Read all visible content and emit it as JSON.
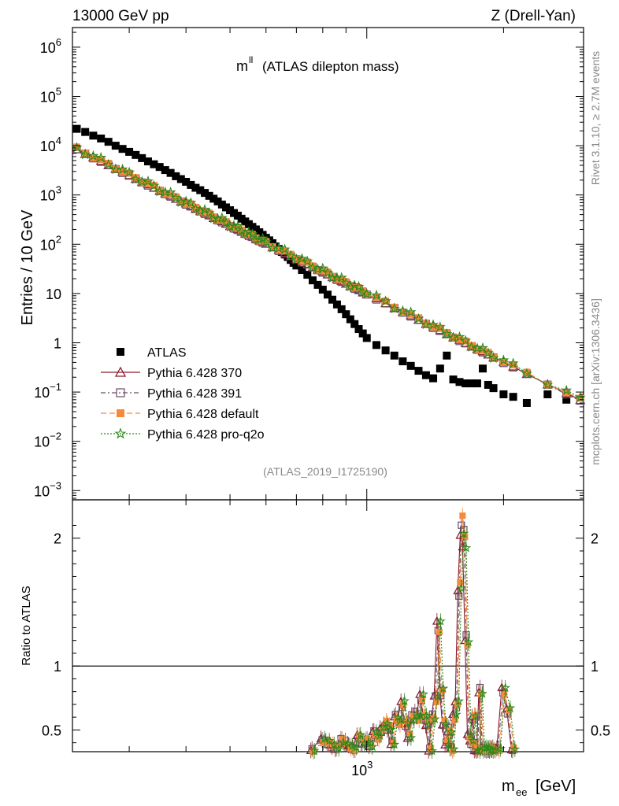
{
  "header": {
    "left": "13000 GeV pp",
    "right": "Z (Drell-Yan)",
    "plot_title_main": "m",
    "plot_title_sup": "ll",
    "plot_title_rest": "(ATLAS dilepton mass)",
    "analysis_id": "(ATLAS_2019_I1725190)"
  },
  "side_labels": {
    "rivet": "Rivet 3.1.10, ≥ 2.7M events",
    "mcplots": "mcplots.cern.ch [arXiv:1306.3436]"
  },
  "axes": {
    "ylabel_main": "Entries / 10 GeV",
    "ylabel_ratio": "Ratio to ATLAS",
    "xlabel_main": "m",
    "xlabel_sub": "ee",
    "xlabel_unit": "[GeV]"
  },
  "legend": [
    {
      "name": "ATLAS",
      "color": "#000000",
      "marker": "square-filled"
    },
    {
      "name": "Pythia 6.428 370",
      "color": "#8b1a2b",
      "marker": "triangle-open"
    },
    {
      "name": "Pythia 6.428 391",
      "color": "#6b4c68",
      "marker": "square-open"
    },
    {
      "name": "Pythia 6.428 default",
      "color": "#f58a3a",
      "marker": "square-filled"
    },
    {
      "name": "Pythia 6.428 pro-q2o",
      "color": "#2a8a1a",
      "marker": "star-open"
    }
  ],
  "chart_data": {
    "type": "scatter",
    "x_scale": "log",
    "y_scale": "log",
    "xlim": [
      225,
      3000
    ],
    "ylim": [
      0.00065,
      2500000
    ],
    "ratio_ylim": [
      0.33,
      2.3
    ],
    "yticks_main": [
      {
        "v": 0.001,
        "m": "10",
        "e": "−3"
      },
      {
        "v": 0.01,
        "m": "10",
        "e": "−2"
      },
      {
        "v": 0.1,
        "m": "10",
        "e": "−1"
      },
      {
        "v": 1,
        "m": "1",
        "e": ""
      },
      {
        "v": 10,
        "m": "10",
        "e": ""
      },
      {
        "v": 100,
        "m": "10",
        "e": "2"
      },
      {
        "v": 1000,
        "m": "10",
        "e": "3"
      },
      {
        "v": 10000,
        "m": "10",
        "e": "4"
      },
      {
        "v": 100000,
        "m": "10",
        "e": "5"
      },
      {
        "v": 1000000,
        "m": "10",
        "e": "6"
      }
    ],
    "xticks_main": [
      {
        "v": 1000,
        "m": "10",
        "e": "3"
      }
    ],
    "yticks_ratio": [
      {
        "v": 0.5,
        "label": "0.5"
      },
      {
        "v": 1,
        "label": "1"
      },
      {
        "v": 2,
        "label": "2"
      }
    ],
    "data_atlas": {
      "x": [
        230,
        240,
        250,
        260,
        270,
        280,
        290,
        300,
        310,
        320,
        330,
        340,
        350,
        360,
        370,
        380,
        390,
        400,
        410,
        420,
        430,
        440,
        450,
        460,
        470,
        480,
        490,
        500,
        510,
        520,
        530,
        540,
        550,
        560,
        570,
        580,
        590,
        600,
        610,
        620,
        630,
        640,
        650,
        660,
        670,
        680,
        690,
        700,
        720,
        740,
        760,
        780,
        800,
        820,
        840,
        860,
        880,
        900,
        920,
        940,
        960,
        980,
        1000,
        1050,
        1100,
        1150,
        1200,
        1250,
        1300,
        1350,
        1400,
        1450,
        1500,
        1550,
        1600,
        1650,
        1700,
        1750,
        1800,
        1850,
        1900,
        2000,
        2100,
        2250,
        2500,
        2750
      ],
      "y": [
        22000,
        19000,
        16000,
        14000,
        12000,
        10000,
        8600,
        7500,
        6500,
        5600,
        4800,
        4200,
        3700,
        3200,
        2800,
        2400,
        2100,
        1850,
        1600,
        1400,
        1250,
        1100,
        960,
        840,
        740,
        640,
        560,
        490,
        430,
        380,
        330,
        290,
        255,
        225,
        200,
        175,
        155,
        135,
        120,
        105,
        90,
        80,
        70,
        62,
        55,
        48,
        42,
        37,
        30,
        24,
        18.5,
        15,
        12,
        9.5,
        7.5,
        6,
        4.8,
        3.8,
        3.0,
        2.4,
        1.9,
        1.55,
        1.25,
        0.9,
        0.7,
        0.55,
        0.42,
        0.34,
        0.27,
        0.22,
        0.19,
        0.3,
        0.55,
        0.18,
        0.16,
        0.15,
        0.15,
        0.15,
        0.3,
        0.14,
        0.12,
        0.09,
        0.08,
        0.06,
        0.09,
        0.07
      ]
    },
    "series_mc": [
      {
        "name": "Pythia 6.428 370",
        "norm": 8500,
        "slope": 4.6,
        "offset": -0.01
      },
      {
        "name": "Pythia 6.428 391",
        "norm": 8300,
        "slope": 4.6,
        "offset": 0.01
      },
      {
        "name": "Pythia 6.428 default",
        "norm": 8800,
        "slope": 4.6,
        "offset": 0.03
      },
      {
        "name": "Pythia 6.428 pro-q2o",
        "norm": 9000,
        "slope": 4.6,
        "offset": 0.05
      }
    ],
    "mc_points_x": [
      230,
      240,
      250,
      260,
      270,
      280,
      290,
      300,
      310,
      320,
      330,
      340,
      350,
      360,
      370,
      380,
      390,
      400,
      410,
      420,
      430,
      440,
      450,
      460,
      470,
      480,
      490,
      500,
      510,
      520,
      530,
      540,
      550,
      560,
      570,
      580,
      590,
      600,
      620,
      640,
      660,
      680,
      700,
      720,
      740,
      760,
      780,
      800,
      820,
      840,
      860,
      880,
      900,
      920,
      940,
      960,
      980,
      1000,
      1050,
      1100,
      1150,
      1200,
      1250,
      1300,
      1350,
      1400,
      1450,
      1500,
      1550,
      1600,
      1650,
      1700,
      1750,
      1800,
      1850,
      1900,
      2000,
      2100,
      2250,
      2500,
      2750,
      2950
    ],
    "ratio_points": {
      "x": [
        760,
        800,
        820,
        840,
        860,
        880,
        900,
        920,
        940,
        960,
        980,
        1000,
        1020,
        1040,
        1060,
        1080,
        1100,
        1120,
        1140,
        1160,
        1180,
        1200,
        1220,
        1240,
        1260,
        1280,
        1300,
        1320,
        1340,
        1360,
        1380,
        1400,
        1420,
        1440,
        1460,
        1480,
        1500,
        1520,
        1540,
        1560,
        1580,
        1600,
        1620,
        1640,
        1660,
        1680,
        1700,
        1720,
        1740,
        1760,
        1780,
        1800,
        1820,
        1840,
        1860,
        1880,
        1900,
        1950,
        2000,
        2050,
        2100
      ],
      "y": [
        0.34,
        0.42,
        0.4,
        0.38,
        0.36,
        0.42,
        0.4,
        0.37,
        0.35,
        0.45,
        0.4,
        0.42,
        0.38,
        0.48,
        0.44,
        0.5,
        0.55,
        0.52,
        0.4,
        0.6,
        0.56,
        0.7,
        0.55,
        0.45,
        0.6,
        0.62,
        0.6,
        0.75,
        0.6,
        0.55,
        0.35,
        0.6,
        0.75,
        1.3,
        0.8,
        0.55,
        0.4,
        0.5,
        0.35,
        0.6,
        0.7,
        1.6,
        2.1,
        2.0,
        1.2,
        0.45,
        0.4,
        0.6,
        0.35,
        0.35,
        0.8,
        0.35,
        0.35,
        0.35,
        0.35,
        0.35,
        0.35,
        0.35,
        0.8,
        0.65,
        0.35
      ]
    }
  }
}
